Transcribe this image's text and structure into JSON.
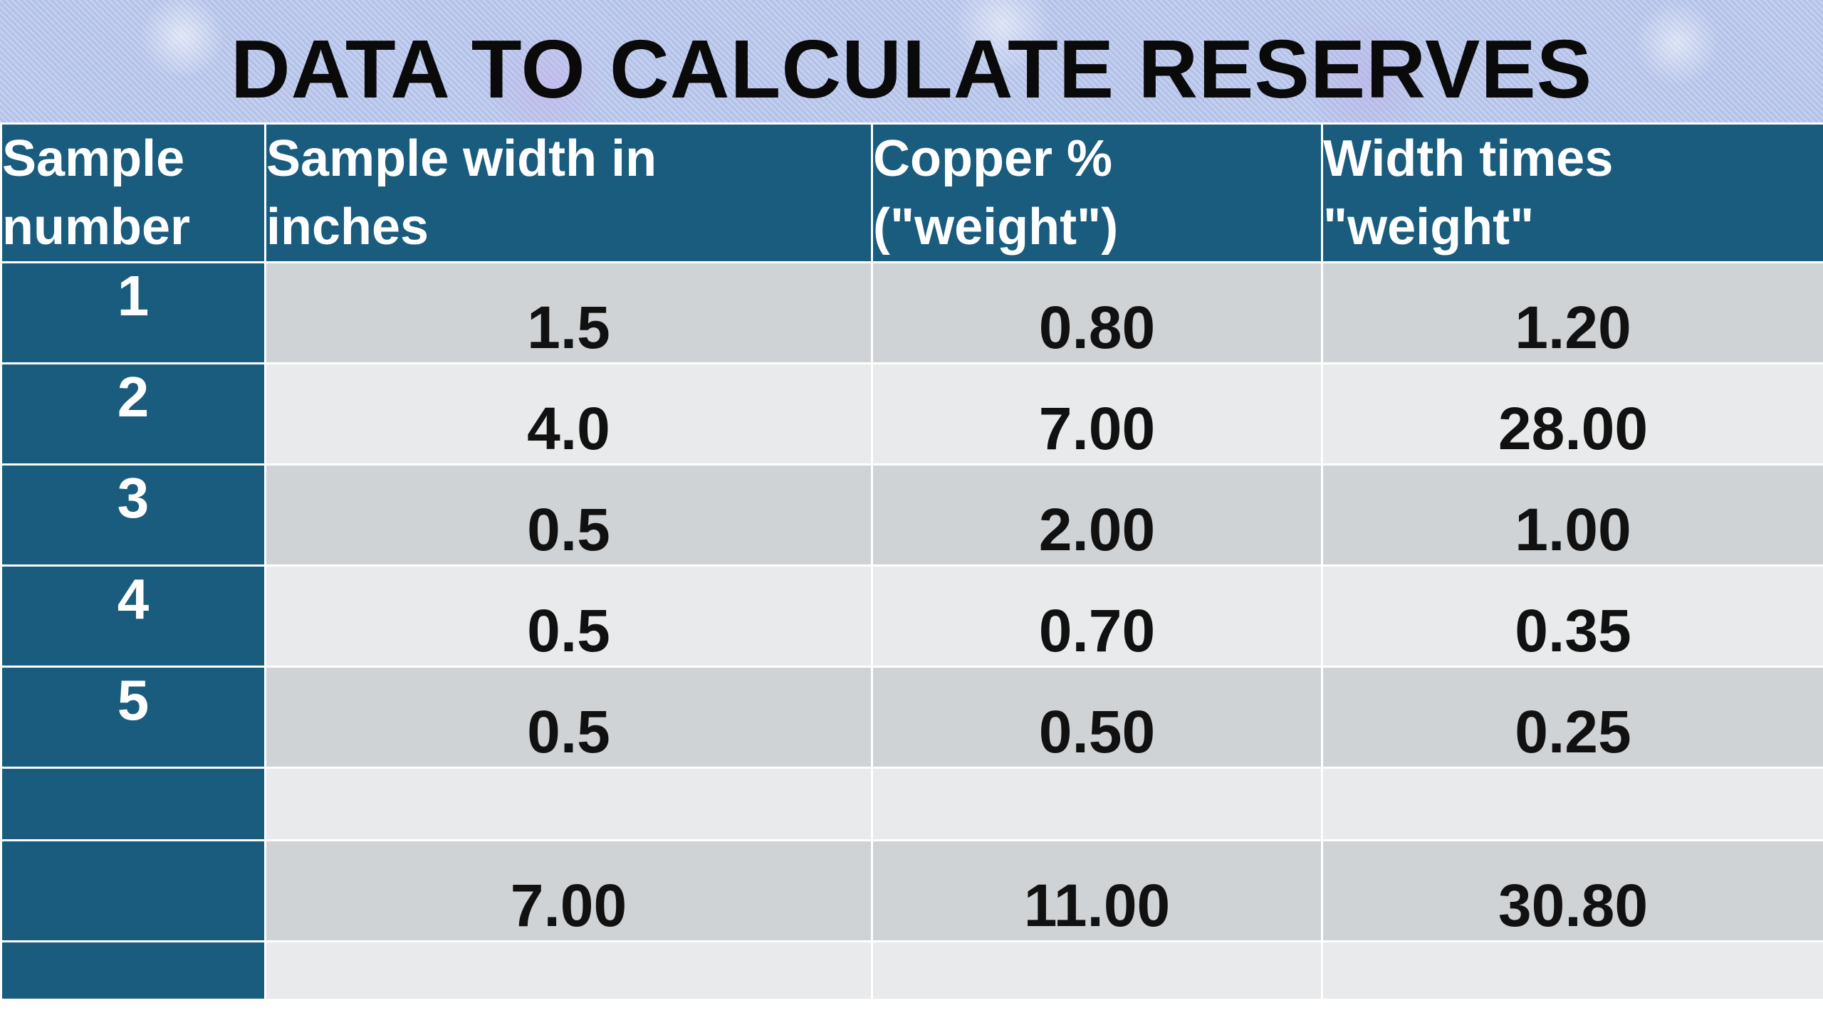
{
  "title": "DATA TO CALCULATE RESERVES",
  "headers": {
    "sample_number": [
      "Sample",
      "number"
    ],
    "sample_width": [
      "Sample width in",
      "inches"
    ],
    "copper_pct": [
      "Copper %",
      "(\"weight\")"
    ],
    "width_times_weight": [
      "Width times",
      "\"weight\""
    ]
  },
  "rows": [
    {
      "sample": "1",
      "width": "1.5",
      "copper": "0.80",
      "product": "1.20"
    },
    {
      "sample": "2",
      "width": "4.0",
      "copper": "7.00",
      "product": "28.00"
    },
    {
      "sample": "3",
      "width": "0.5",
      "copper": "2.00",
      "product": "1.00"
    },
    {
      "sample": "4",
      "width": "0.5",
      "copper": "0.70",
      "product": "0.35"
    },
    {
      "sample": "5",
      "width": "0.5",
      "copper": "0.50",
      "product": "0.25"
    }
  ],
  "totals": {
    "width": "7.00",
    "copper": "11.00",
    "product": "30.80"
  },
  "colors": {
    "header_bg": "#1a5c7e",
    "row_dark": "#cfd3d6",
    "row_light": "#e8eaeb"
  }
}
